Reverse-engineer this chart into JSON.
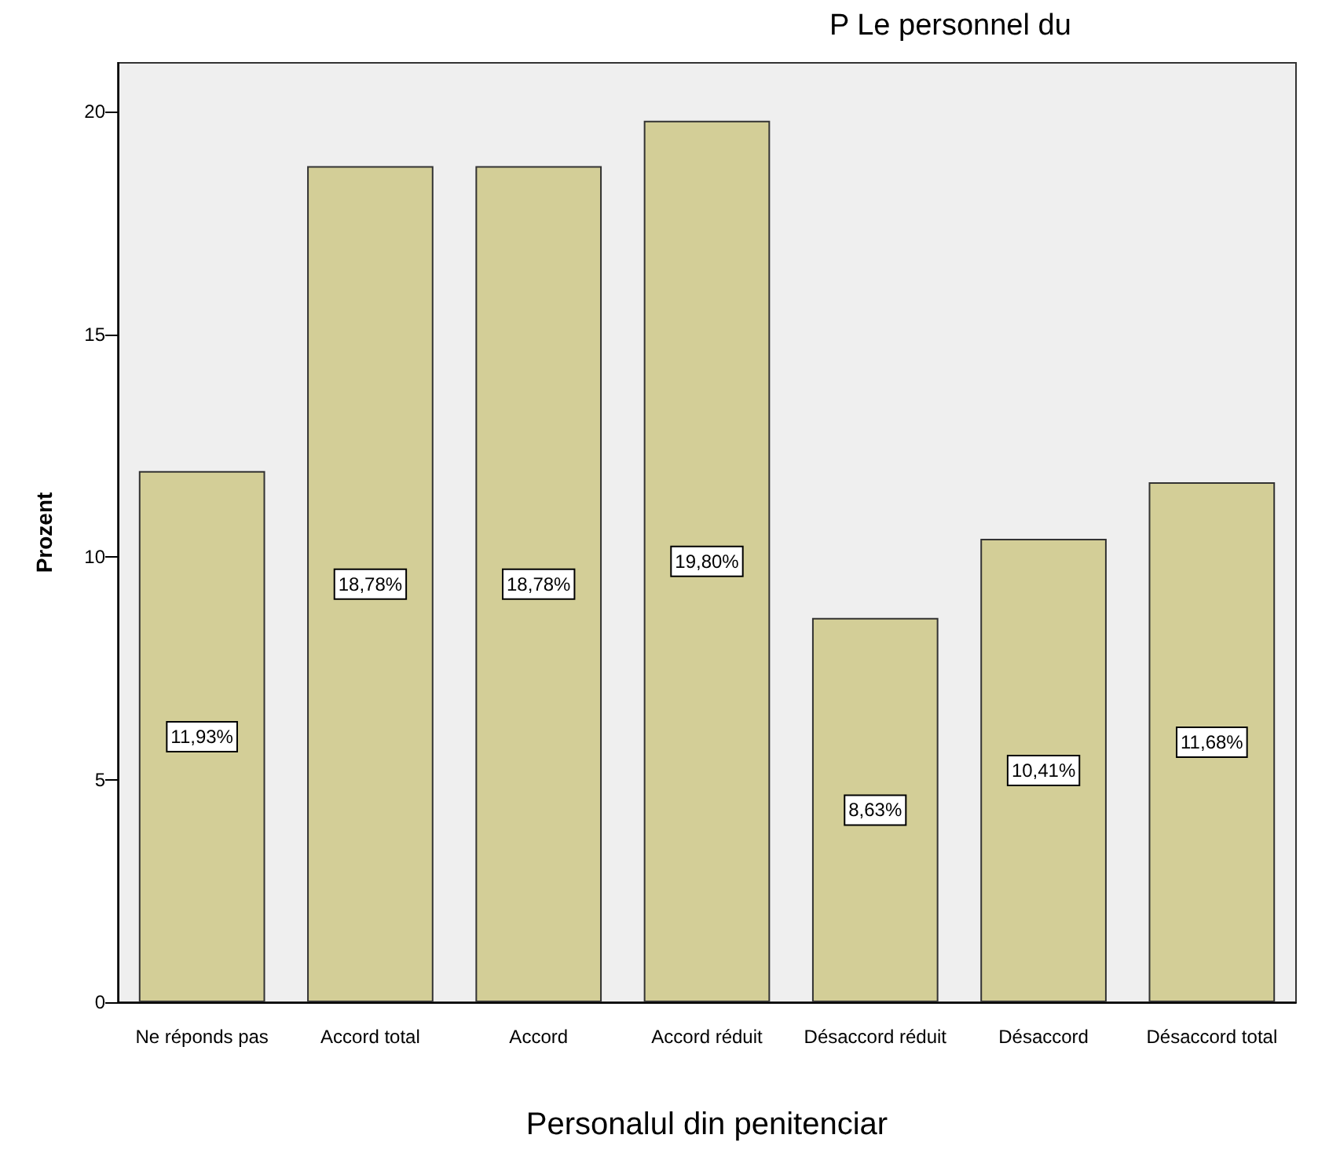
{
  "chart_data": {
    "type": "bar",
    "title": "P Le personnel du",
    "xlabel": "Personalul din penitenciar",
    "ylabel": "Prozent",
    "categories": [
      "Ne réponds pas",
      "Accord total",
      "Accord",
      "Accord réduit",
      "Désaccord réduit",
      "Désaccord",
      "Désaccord total"
    ],
    "values": [
      11.93,
      18.78,
      18.78,
      19.8,
      8.63,
      10.41,
      11.68
    ],
    "value_labels": [
      "11,93%",
      "18,78%",
      "18,78%",
      "19,80%",
      "8,63%",
      "10,41%",
      "11,68%"
    ],
    "color": "#d3ce97",
    "ylim": [
      0,
      21.1
    ],
    "yticks": [
      0,
      5,
      10,
      15,
      20
    ]
  }
}
